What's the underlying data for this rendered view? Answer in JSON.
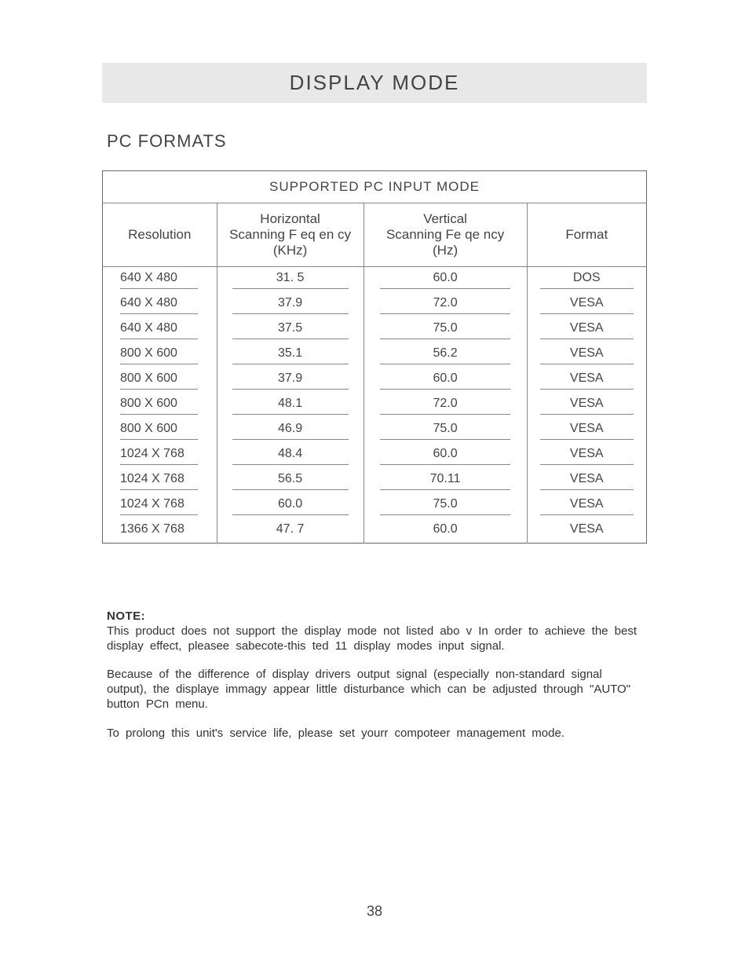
{
  "page": {
    "title": "DISPLAY MODE",
    "section": "PC  FORMATS",
    "number": "38"
  },
  "table": {
    "title": "SUPPORTED PC INPUT MODE",
    "columns": {
      "resolution": "Resolution",
      "hfreq_l1": "Horizontal",
      "hfreq_l2": "Scanning F eq en cy",
      "hfreq_l3": "(KHz)",
      "vfreq_l1": "Vertical",
      "vfreq_l2": "Scanning Fe qe ncy",
      "vfreq_l3": "(Hz)",
      "format": "Format"
    },
    "rows": [
      {
        "res": "640 X 480",
        "h": "31. 5",
        "v": "60.0",
        "f": "DOS"
      },
      {
        "res": "640 X 480",
        "h": "37.9",
        "v": "72.0",
        "f": "VESA"
      },
      {
        "res": "640 X 480",
        "h": "37.5",
        "v": "75.0",
        "f": "VESA"
      },
      {
        "res": "800 X 600",
        "h": "35.1",
        "v": "56.2",
        "f": "VESA"
      },
      {
        "res": "800 X 600",
        "h": "37.9",
        "v": "60.0",
        "f": "VESA"
      },
      {
        "res": "800 X 600",
        "h": "48.1",
        "v": "72.0",
        "f": "VESA"
      },
      {
        "res": "800 X 600",
        "h": "46.9",
        "v": "75.0",
        "f": "VESA"
      },
      {
        "res": "1024 X 768",
        "h": "48.4",
        "v": "60.0",
        "f": "VESA"
      },
      {
        "res": "1024 X 768",
        "h": "56.5",
        "v": "70.11",
        "f": "VESA"
      },
      {
        "res": "1024 X 768",
        "h": "60.0",
        "v": "75.0",
        "f": "VESA"
      },
      {
        "res": "1366 X 768",
        "h": "47. 7",
        "v": "60.0",
        "f": "VESA"
      }
    ]
  },
  "note": {
    "label": "NOTE:",
    "p1": "This product does not support the display mode not listed abo v In order to achieve the best display effect, pleasee sabecote-this ted 11 display modes input signal.",
    "p2": "Because of the difference of display drivers output signal (especially non-standard signal output), the displaye immagy appear little disturbance which can be adjusted through \"AUTO\" button PCn menu.",
    "p3": "To prolong this unit's service life, please set yourr compoteer management mode."
  },
  "style": {
    "title_bg": "#e8e8e8",
    "text_color": "#333333",
    "border_color": "#666666",
    "inner_border": "#888888"
  }
}
